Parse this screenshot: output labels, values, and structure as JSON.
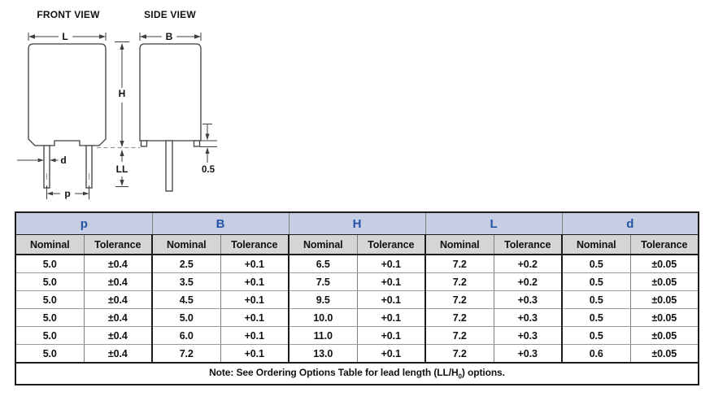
{
  "diagram": {
    "front_view_title": "FRONT VIEW",
    "side_view_title": "SIDE VIEW",
    "labels": {
      "L": "L",
      "B": "B",
      "H": "H",
      "LL": "LL",
      "d": "d",
      "p": "p",
      "standoff": "0.5"
    }
  },
  "table": {
    "groups": [
      {
        "label": "p"
      },
      {
        "label": "B"
      },
      {
        "label": "H"
      },
      {
        "label": "L"
      },
      {
        "label": "d"
      }
    ],
    "sub_headers": [
      "Nominal",
      "Tolerance"
    ],
    "rows": [
      [
        "5.0",
        "±0.4",
        "2.5",
        "+0.1",
        "6.5",
        "+0.1",
        "7.2",
        "+0.2",
        "0.5",
        "±0.05"
      ],
      [
        "5.0",
        "±0.4",
        "3.5",
        "+0.1",
        "7.5",
        "+0.1",
        "7.2",
        "+0.2",
        "0.5",
        "±0.05"
      ],
      [
        "5.0",
        "±0.4",
        "4.5",
        "+0.1",
        "9.5",
        "+0.1",
        "7.2",
        "+0.3",
        "0.5",
        "±0.05"
      ],
      [
        "5.0",
        "±0.4",
        "5.0",
        "+0.1",
        "10.0",
        "+0.1",
        "7.2",
        "+0.3",
        "0.5",
        "±0.05"
      ],
      [
        "5.0",
        "±0.4",
        "6.0",
        "+0.1",
        "11.0",
        "+0.1",
        "7.2",
        "+0.3",
        "0.5",
        "±0.05"
      ],
      [
        "5.0",
        "±0.4",
        "7.2",
        "+0.1",
        "13.0",
        "+0.1",
        "7.2",
        "+0.3",
        "0.6",
        "±0.05"
      ]
    ],
    "note": {
      "prefix": "Note: See Ordering Options Table for lead length (LL/H",
      "sub": "0",
      "suffix": ") options."
    }
  },
  "colors": {
    "group_header_bg": "#c7cde3",
    "group_header_text": "#2454a6",
    "sub_header_bg": "#d5d5d6",
    "border_dark": "#1c1c1c",
    "diagram_line": "#3f3f3f",
    "dashed_reference_line": "#9a9a9a"
  }
}
